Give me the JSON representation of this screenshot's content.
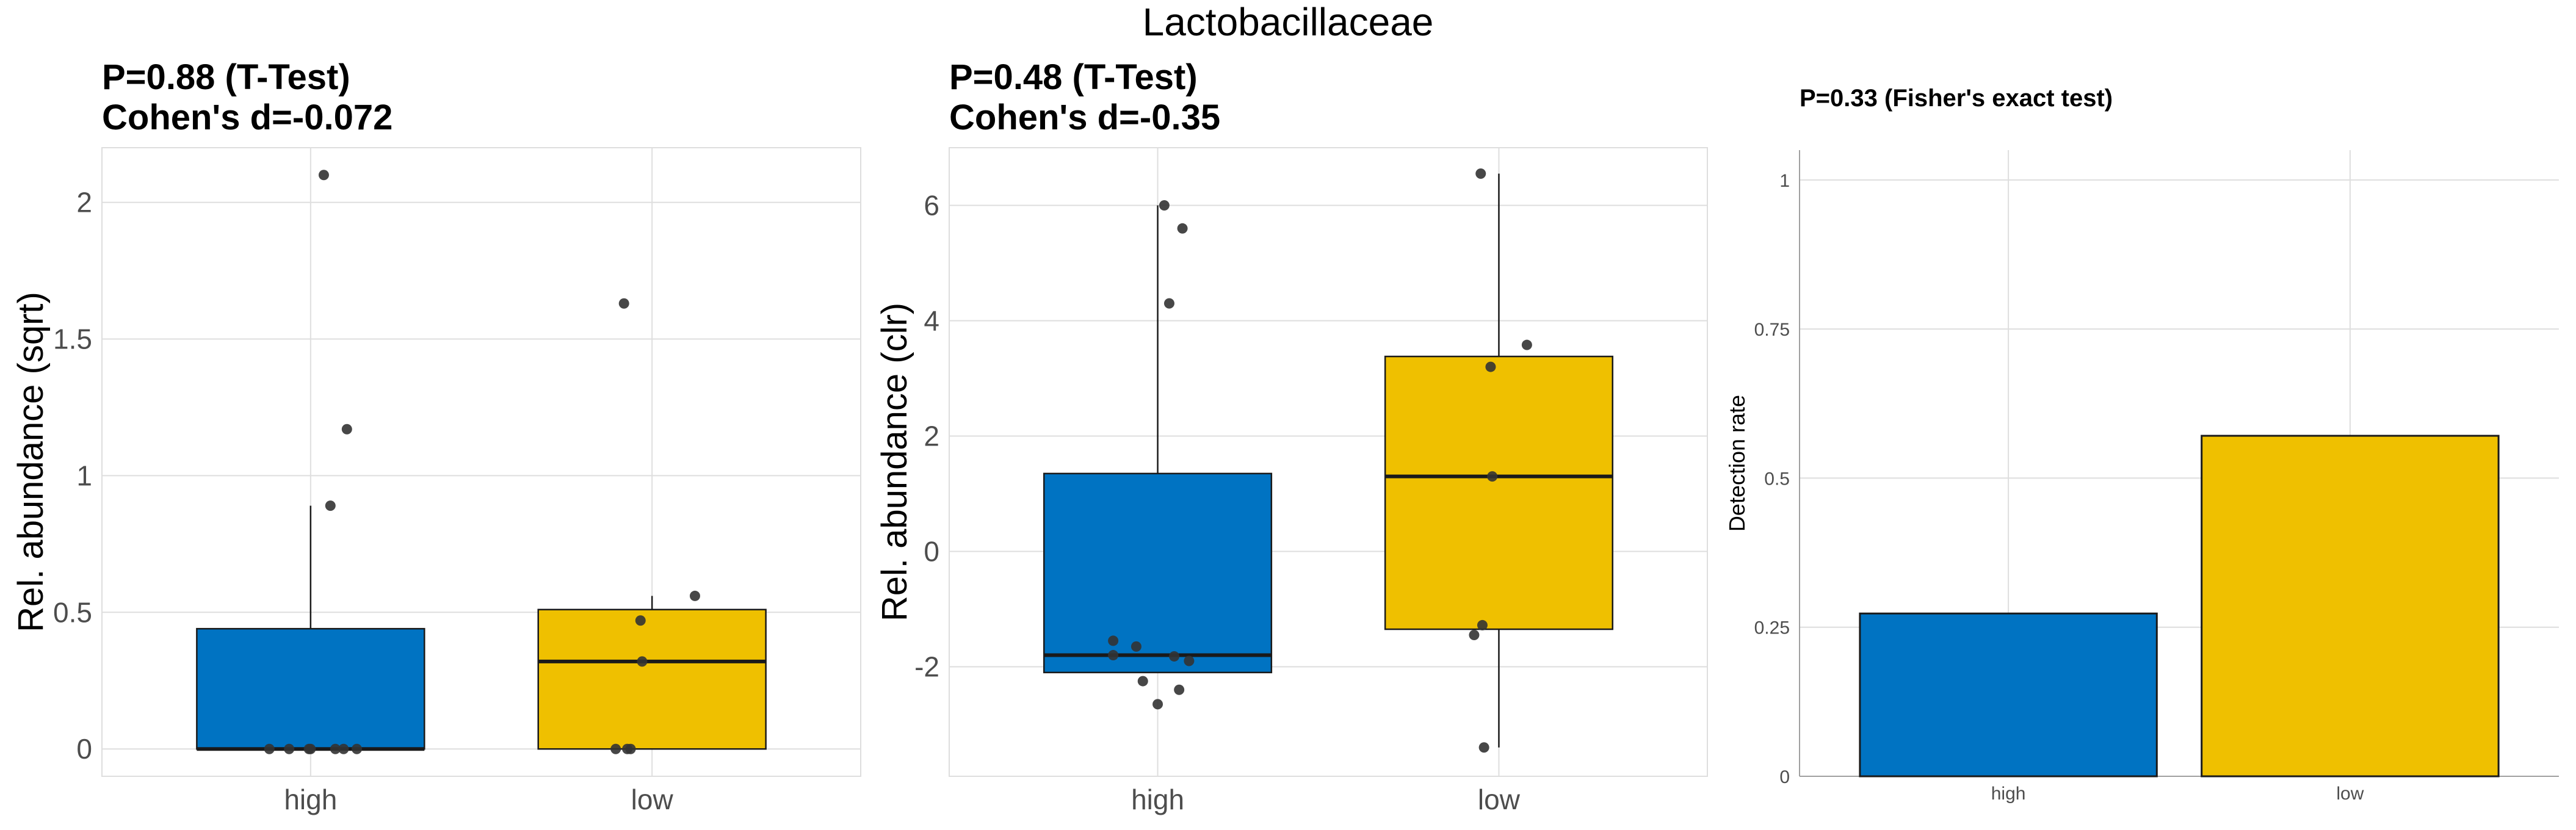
{
  "figure_title": "Lactobacillaceae",
  "colors": {
    "high": "#0073C2",
    "low": "#EFC000",
    "point": "#333333"
  },
  "chart_data": [
    {
      "type": "boxplot",
      "title": [
        "P=0.88 (T-Test)",
        "Cohen's d=-0.072"
      ],
      "xlabel": "",
      "ylabel": "Rel. abundance (sqrt)",
      "ylim": [
        -0.1,
        2.2
      ],
      "yticks": [
        0,
        0.5,
        1,
        1.5,
        2
      ],
      "ytick_labels": [
        "0",
        "0.5",
        "1",
        "1.5",
        "2"
      ],
      "categories": [
        "high",
        "low"
      ],
      "boxes": [
        {
          "group": "high",
          "q1": 0,
          "median": 0,
          "q3": 0.44,
          "whisker_low": 0,
          "whisker_high": 0.89
        },
        {
          "group": "low",
          "q1": 0,
          "median": 0.32,
          "q3": 0.51,
          "whisker_low": 0,
          "whisker_high": 0.56
        }
      ],
      "points": [
        {
          "group": "high",
          "y": 2.1,
          "jitter": 0.08
        },
        {
          "group": "high",
          "y": 1.17,
          "jitter": 0.22
        },
        {
          "group": "high",
          "y": 0.89,
          "jitter": 0.12
        },
        {
          "group": "high",
          "y": 0,
          "jitter": -0.25
        },
        {
          "group": "high",
          "y": 0,
          "jitter": -0.13
        },
        {
          "group": "high",
          "y": 0,
          "jitter": -0.01
        },
        {
          "group": "high",
          "y": 0,
          "jitter": 0.0
        },
        {
          "group": "high",
          "y": 0,
          "jitter": 0.15
        },
        {
          "group": "high",
          "y": 0,
          "jitter": 0.2
        },
        {
          "group": "high",
          "y": 0,
          "jitter": 0.28
        },
        {
          "group": "low",
          "y": 1.63,
          "jitter": -0.17
        },
        {
          "group": "low",
          "y": 0.56,
          "jitter": 0.26
        },
        {
          "group": "low",
          "y": 0.47,
          "jitter": -0.07
        },
        {
          "group": "low",
          "y": 0.32,
          "jitter": -0.06
        },
        {
          "group": "low",
          "y": 0,
          "jitter": -0.22
        },
        {
          "group": "low",
          "y": 0,
          "jitter": -0.15
        },
        {
          "group": "low",
          "y": 0,
          "jitter": -0.13
        }
      ]
    },
    {
      "type": "boxplot",
      "title": [
        "P=0.48 (T-Test)",
        "Cohen's d=-0.35"
      ],
      "xlabel": "",
      "ylabel": "Rel. abundance (clr)",
      "ylim": [
        -3.9,
        7.0
      ],
      "yticks": [
        -2,
        0,
        2,
        4,
        6
      ],
      "ytick_labels": [
        "-2",
        "0",
        "2",
        "4",
        "6"
      ],
      "categories": [
        "high",
        "low"
      ],
      "boxes": [
        {
          "group": "high",
          "q1": -2.1,
          "median": -1.8,
          "q3": 1.35,
          "whisker_low": -2.1,
          "whisker_high": 6.0
        },
        {
          "group": "low",
          "q1": -1.35,
          "median": 1.3,
          "q3": 3.38,
          "whisker_low": -3.4,
          "whisker_high": 6.55
        }
      ],
      "points": [
        {
          "group": "high",
          "y": 6.0,
          "jitter": 0.04
        },
        {
          "group": "high",
          "y": 5.6,
          "jitter": 0.15
        },
        {
          "group": "high",
          "y": 4.3,
          "jitter": 0.07
        },
        {
          "group": "high",
          "y": -1.55,
          "jitter": -0.27
        },
        {
          "group": "high",
          "y": -1.65,
          "jitter": -0.13
        },
        {
          "group": "high",
          "y": -1.8,
          "jitter": -0.27
        },
        {
          "group": "high",
          "y": -1.82,
          "jitter": 0.1
        },
        {
          "group": "high",
          "y": -1.9,
          "jitter": 0.19
        },
        {
          "group": "high",
          "y": -2.25,
          "jitter": -0.09
        },
        {
          "group": "high",
          "y": -2.4,
          "jitter": 0.13
        },
        {
          "group": "high",
          "y": -2.65,
          "jitter": 0.0
        },
        {
          "group": "low",
          "y": 6.55,
          "jitter": -0.11
        },
        {
          "group": "low",
          "y": 3.58,
          "jitter": 0.17
        },
        {
          "group": "low",
          "y": 3.2,
          "jitter": -0.05
        },
        {
          "group": "low",
          "y": 1.3,
          "jitter": -0.04
        },
        {
          "group": "low",
          "y": -1.28,
          "jitter": -0.1
        },
        {
          "group": "low",
          "y": -1.45,
          "jitter": -0.15
        },
        {
          "group": "low",
          "y": -3.4,
          "jitter": -0.09
        }
      ]
    },
    {
      "type": "bar",
      "title": [
        "P=0.33 (Fisher's exact test)"
      ],
      "xlabel": "",
      "ylabel": "Detection rate",
      "ylim": [
        0,
        1.05
      ],
      "yticks": [
        0,
        0.25,
        0.5,
        0.75,
        1
      ],
      "ytick_labels": [
        "0",
        "0.25",
        "0.5",
        "0.75",
        "1"
      ],
      "categories": [
        "high",
        "low"
      ],
      "values": [
        0.273,
        0.571
      ]
    }
  ]
}
